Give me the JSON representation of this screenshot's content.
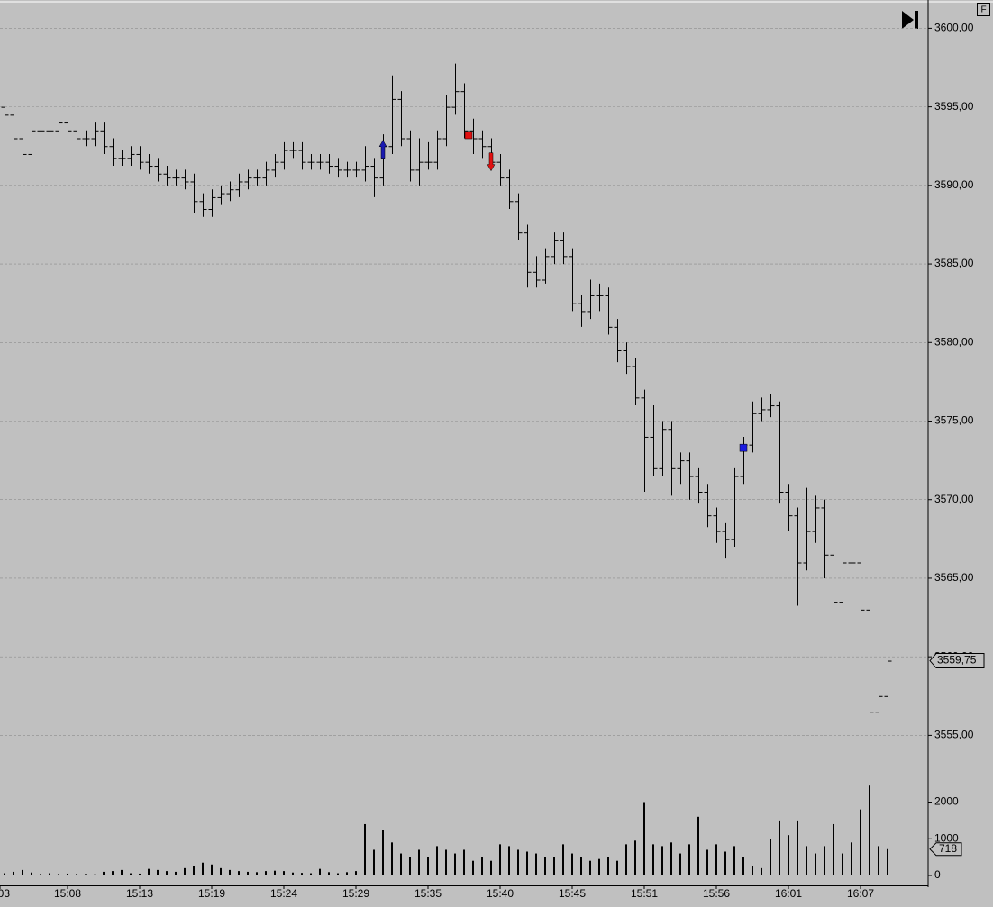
{
  "chart_data": {
    "type": "ohlc",
    "corner_label": "F",
    "grid": true,
    "color": "#000000",
    "xlim": [
      -0.5,
      102.5
    ],
    "xticks": [
      {
        "value": -0.5,
        "label": "03"
      },
      {
        "value": 7,
        "label": "15:08"
      },
      {
        "value": 15,
        "label": "15:13"
      },
      {
        "value": 23,
        "label": "15:19"
      },
      {
        "value": 31,
        "label": "15:24"
      },
      {
        "value": 39,
        "label": "15:29"
      },
      {
        "value": 47,
        "label": "15:35"
      },
      {
        "value": 55,
        "label": "15:40"
      },
      {
        "value": 63,
        "label": "15:45"
      },
      {
        "value": 71,
        "label": "15:51"
      },
      {
        "value": 79,
        "label": "15:56"
      },
      {
        "value": 87,
        "label": "16:01"
      },
      {
        "value": 95,
        "label": "16:07"
      }
    ],
    "ylim": [
      3552.5,
      3601.8
    ],
    "yticks": [
      {
        "value": 3555,
        "label": "3555,00"
      },
      {
        "value": 3560,
        "label": "3560,00"
      },
      {
        "value": 3565,
        "label": "3565,00"
      },
      {
        "value": 3570,
        "label": "3570,00"
      },
      {
        "value": 3575,
        "label": "3575,00"
      },
      {
        "value": 3580,
        "label": "3580,00"
      },
      {
        "value": 3585,
        "label": "3585,00"
      },
      {
        "value": 3590,
        "label": "3590,00"
      },
      {
        "value": 3595,
        "label": "3595,00"
      },
      {
        "value": 3600,
        "label": "3600,00"
      }
    ],
    "open": [
      3595,
      3594.5,
      3593,
      3592,
      3593.5,
      3593.5,
      3593.5,
      3594,
      3593.5,
      3593,
      3593,
      3593.5,
      3592.5,
      3591.75,
      3591.75,
      3592,
      3591.5,
      3591.25,
      3590.75,
      3590.5,
      3590.5,
      3590.25,
      3589,
      3588.5,
      3589.25,
      3589.5,
      3589.75,
      3590.25,
      3590.5,
      3590.5,
      3591,
      3591.5,
      3592.25,
      3592.25,
      3591.5,
      3591.5,
      3591.5,
      3591.25,
      3591,
      3591,
      3591,
      3591.25,
      3590.5,
      3592.5,
      3595.5,
      3593,
      3591,
      3591.5,
      3591.5,
      3593,
      3595,
      3596,
      3593.5,
      3593,
      3592.5,
      3591.5,
      3590.5,
      3589,
      3587,
      3584.5,
      3584,
      3585.5,
      3586.5,
      3585.5,
      3582.5,
      3582,
      3583,
      3583,
      3581,
      3579.5,
      3578.5,
      3576.5,
      3574,
      3572,
      3574.5,
      3572,
      3572.5,
      3571.5,
      3570.5,
      3569,
      3568,
      3567.5,
      3571.5,
      3573.5,
      3575.5,
      3575.75,
      3576,
      3570.5,
      3569,
      3566,
      3568,
      3569.5,
      3566.5,
      3563.5,
      3566,
      3566,
      3563,
      3556.5,
      3557.5
    ],
    "high": [
      3595.5,
      3595,
      3593.5,
      3594,
      3594,
      3594,
      3594.5,
      3594.5,
      3594,
      3593.5,
      3594,
      3594,
      3593,
      3592.25,
      3592.5,
      3592.5,
      3592,
      3591.75,
      3591.25,
      3591,
      3591,
      3590.75,
      3589.5,
      3589.75,
      3590,
      3590.25,
      3590.75,
      3591,
      3591,
      3591.5,
      3592,
      3592.75,
      3592.75,
      3592.75,
      3592,
      3592,
      3592,
      3591.75,
      3591.5,
      3591.5,
      3592.5,
      3591.75,
      3593.25,
      3597,
      3596,
      3593.5,
      3593,
      3592.75,
      3593.5,
      3595.75,
      3597.75,
      3596.5,
      3594.25,
      3593.5,
      3593,
      3592,
      3591,
      3589.5,
      3587.5,
      3585.5,
      3586,
      3587,
      3587,
      3586,
      3583,
      3584,
      3583.75,
      3583.5,
      3581.5,
      3580,
      3579,
      3577,
      3576,
      3575,
      3575,
      3573,
      3573,
      3572,
      3571,
      3569.5,
      3568.5,
      3572,
      3574,
      3576.25,
      3576.5,
      3576.75,
      3576.25,
      3571,
      3569.5,
      3570.75,
      3570.25,
      3570,
      3567,
      3567,
      3568,
      3566.5,
      3563.5,
      3558.75,
      3560
    ],
    "low": [
      3594,
      3592.5,
      3591.5,
      3591.5,
      3593,
      3593,
      3593,
      3593,
      3592.5,
      3592.5,
      3592.5,
      3592,
      3591.25,
      3591.25,
      3591.25,
      3591,
      3590.75,
      3590.25,
      3590,
      3590,
      3589.75,
      3588.25,
      3588,
      3588,
      3588.75,
      3589,
      3589.25,
      3589.75,
      3590,
      3590,
      3590.5,
      3591,
      3591.75,
      3591,
      3591,
      3591,
      3590.75,
      3590.5,
      3590.5,
      3590.5,
      3590.25,
      3589.25,
      3590,
      3592,
      3592.5,
      3590.25,
      3590,
      3591,
      3591,
      3592.5,
      3594.5,
      3593,
      3592,
      3591.75,
      3591,
      3590,
      3588.5,
      3586.5,
      3583.5,
      3583.5,
      3583.75,
      3585,
      3585,
      3582,
      3581,
      3581.5,
      3582,
      3580.5,
      3578.75,
      3578,
      3576,
      3570.5,
      3571.5,
      3571.5,
      3570.25,
      3571,
      3570,
      3569.75,
      3568.25,
      3567.25,
      3566.25,
      3567,
      3571,
      3573,
      3575,
      3575.25,
      3569.75,
      3568,
      3563.25,
      3565.5,
      3567.25,
      3565,
      3561.75,
      3563,
      3564.5,
      3562.25,
      3553.25,
      3555.75,
      3557
    ],
    "close": [
      3594.5,
      3593,
      3592,
      3593.5,
      3593.5,
      3593.5,
      3594,
      3593.5,
      3593,
      3593,
      3593.5,
      3592.5,
      3591.75,
      3591.75,
      3592,
      3591.5,
      3591.25,
      3590.75,
      3590.5,
      3590.5,
      3590.25,
      3589,
      3588.5,
      3589.25,
      3589.5,
      3589.75,
      3590.25,
      3590.5,
      3590.5,
      3591,
      3591.5,
      3592.25,
      3592.25,
      3591.5,
      3591.5,
      3591.5,
      3591.25,
      3591,
      3591,
      3591,
      3591.25,
      3590.5,
      3592.5,
      3595.5,
      3593,
      3591,
      3591.5,
      3591.5,
      3593,
      3595,
      3596,
      3593.5,
      3593,
      3592.5,
      3591.5,
      3590.5,
      3589,
      3587,
      3584.5,
      3584,
      3585.5,
      3586.5,
      3585.5,
      3582.5,
      3582,
      3583,
      3583,
      3581,
      3579.5,
      3578.5,
      3576.5,
      3574,
      3572,
      3574.5,
      3572,
      3572.5,
      3571.5,
      3570.5,
      3569,
      3568,
      3567.5,
      3571.5,
      3573.5,
      3575.5,
      3575.75,
      3576,
      3570.5,
      3569,
      3566,
      3568,
      3569.5,
      3566.5,
      3563.5,
      3566,
      3566,
      3563,
      3556.5,
      3557.5,
      3559.75
    ],
    "last_price": {
      "value": 3559.75,
      "label": "3559,75"
    },
    "signals": [
      {
        "shape": "up-arrow",
        "x": 42,
        "y": 3592.3,
        "color": "#1a1ab0"
      },
      {
        "shape": "square",
        "x": 51.5,
        "y": 3593.2,
        "color": "#e01010"
      },
      {
        "shape": "down-arrow",
        "x": 54,
        "y": 3591.5,
        "color": "#e01010"
      },
      {
        "shape": "square",
        "x": 82,
        "y": 3573.3,
        "color": "#1a1ae0"
      }
    ],
    "volume": {
      "color": "#000000",
      "ylim": [
        -270,
        2700
      ],
      "yticks": [
        0,
        1000,
        2000
      ],
      "values": [
        60,
        100,
        150,
        80,
        40,
        60,
        40,
        50,
        40,
        40,
        30,
        100,
        120,
        150,
        60,
        50,
        180,
        150,
        120,
        100,
        200,
        250,
        350,
        300,
        200,
        150,
        120,
        100,
        90,
        120,
        130,
        120,
        80,
        70,
        60,
        180,
        90,
        60,
        90,
        120,
        1400,
        700,
        1250,
        900,
        600,
        500,
        700,
        500,
        800,
        700,
        600,
        700,
        400,
        500,
        400,
        850,
        800,
        700,
        650,
        600,
        500,
        500,
        850,
        600,
        500,
        400,
        450,
        500,
        400,
        850,
        950,
        2000,
        850,
        800,
        900,
        600,
        850,
        1600,
        700,
        850,
        650,
        800,
        500,
        250,
        200,
        1000,
        1500,
        1100,
        1500,
        800,
        600,
        800,
        1400,
        600,
        900,
        1800,
        2450,
        800,
        718
      ]
    }
  }
}
